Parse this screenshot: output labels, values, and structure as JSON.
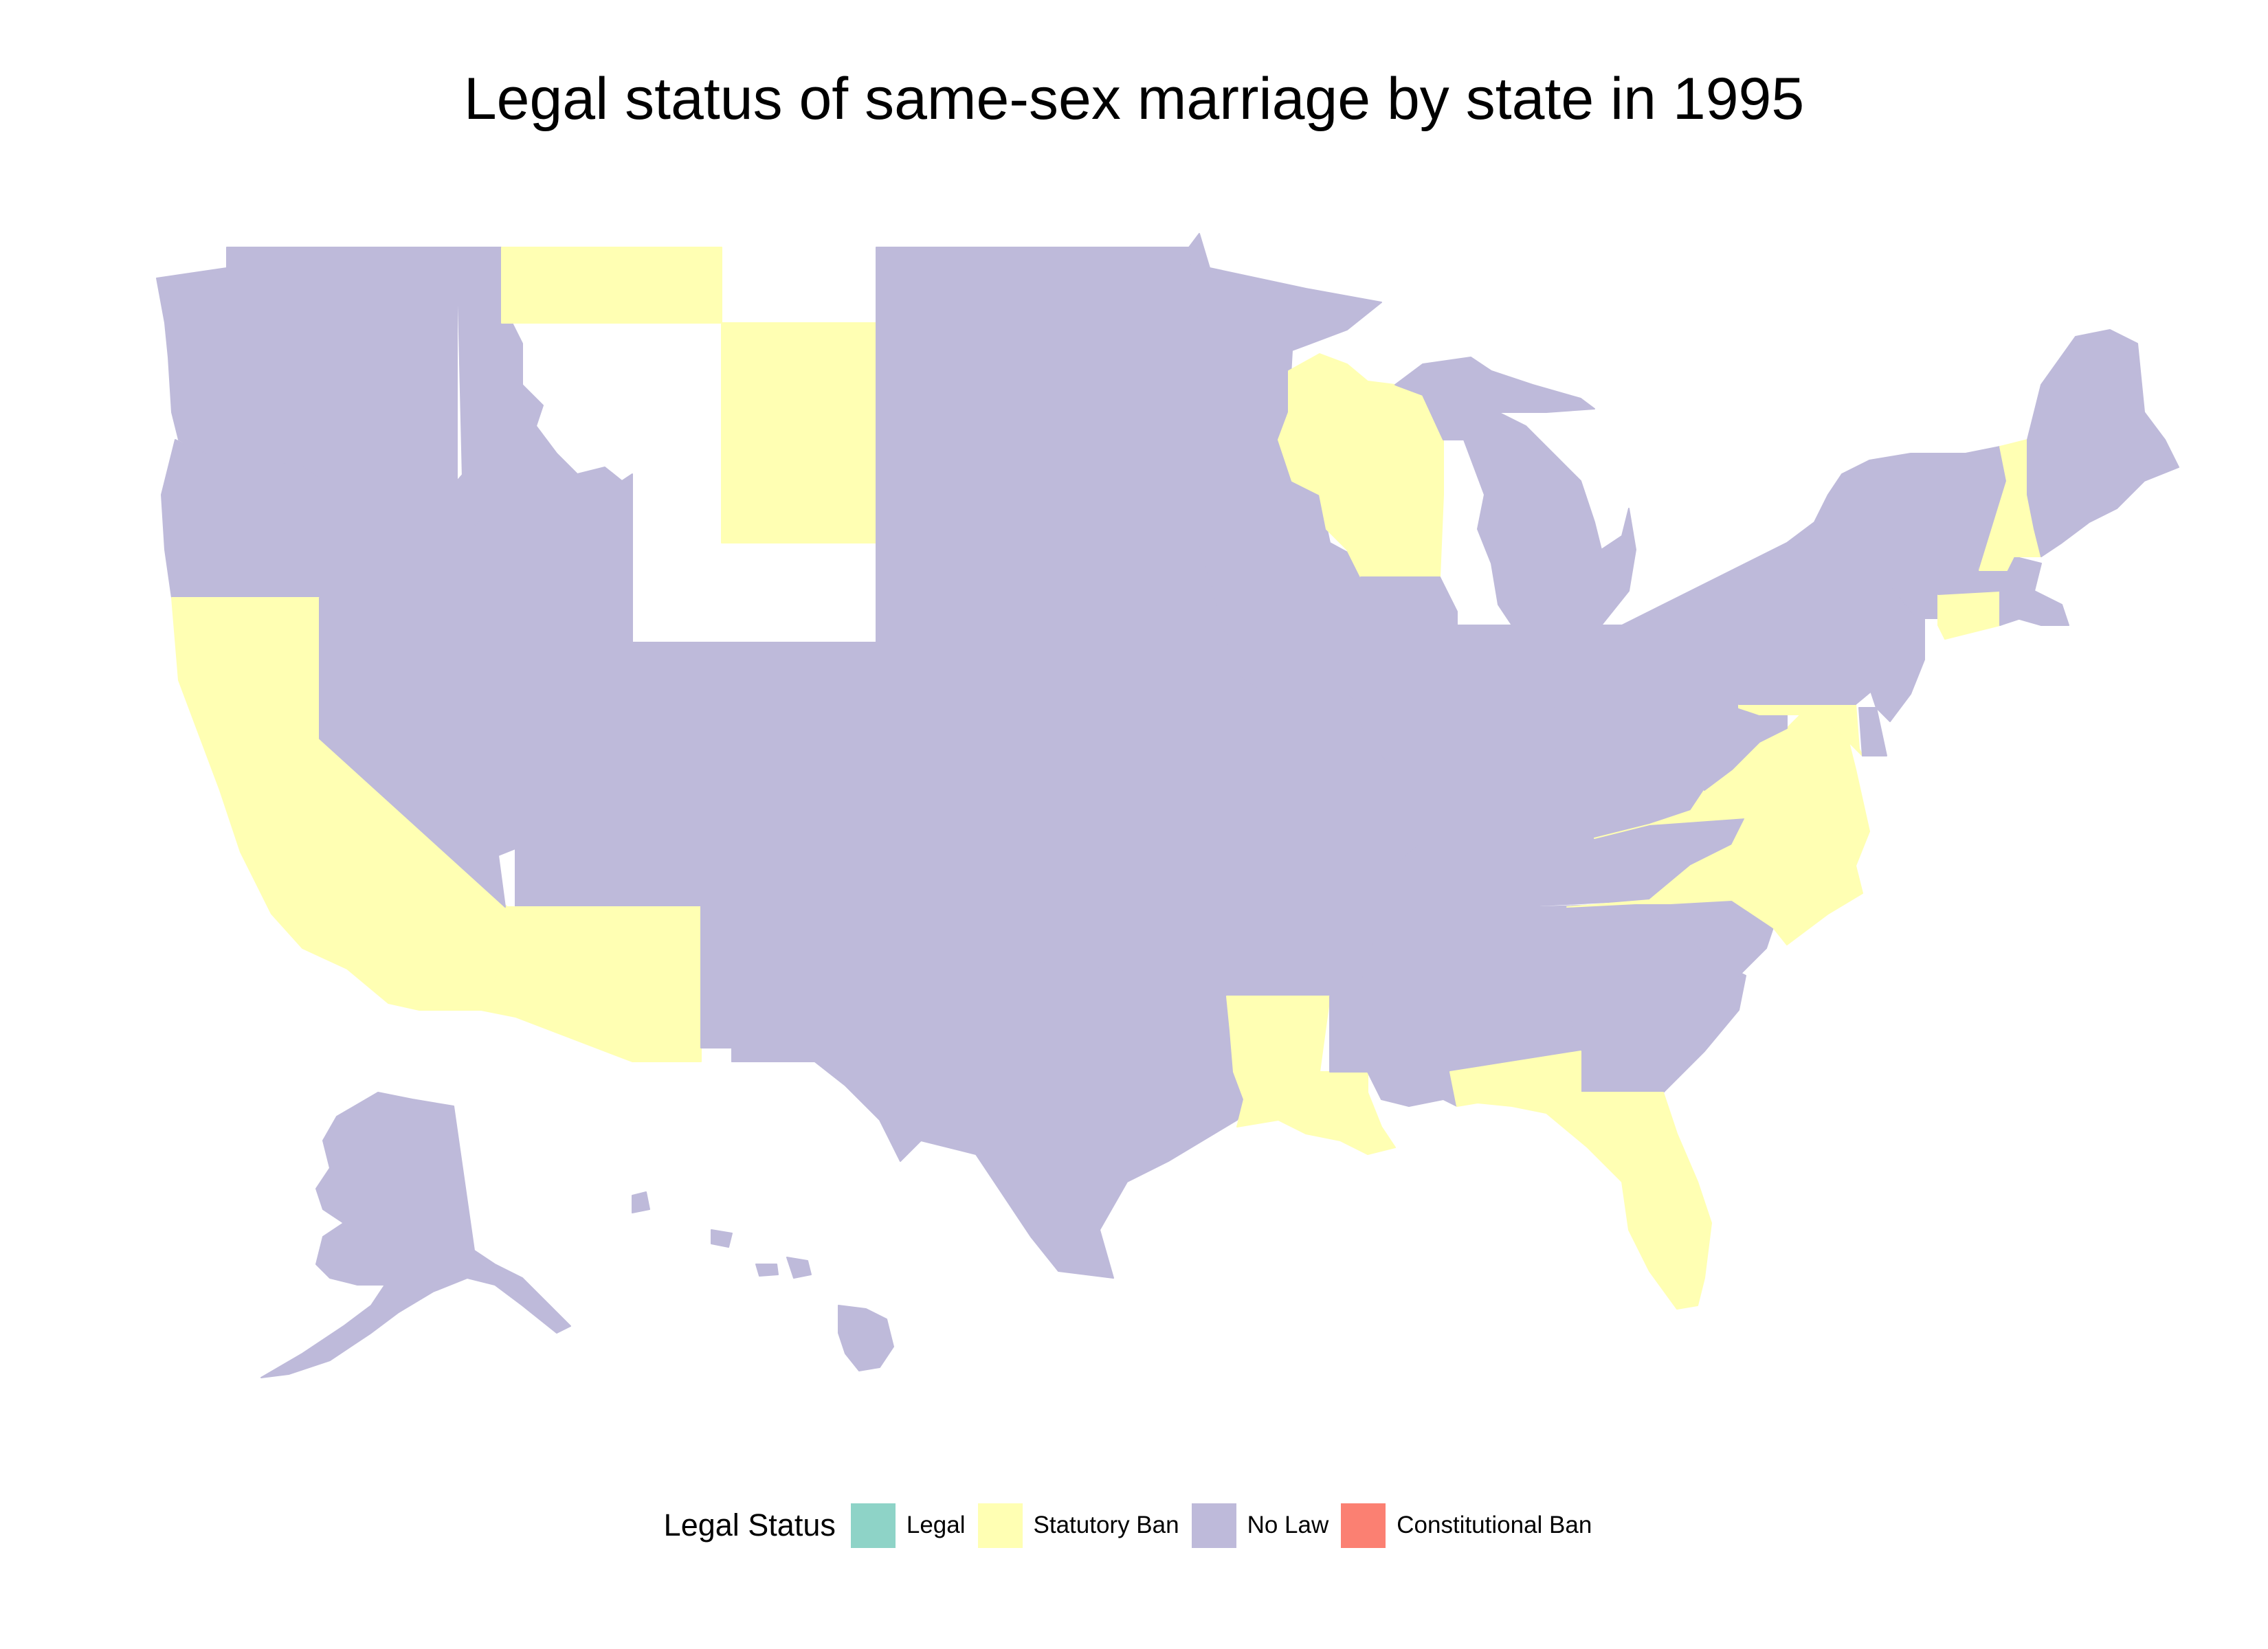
{
  "title": "Legal status of same-sex marriage by state in 1995",
  "legend": {
    "title": "Legal Status",
    "items": [
      {
        "key": "legal",
        "label": "Legal",
        "color": "#8ED3C7"
      },
      {
        "key": "statutory",
        "label": "Statutory Ban",
        "color": "#FFFFB3"
      },
      {
        "key": "nolaw",
        "label": "No Law",
        "color": "#BEBADA"
      },
      {
        "key": "constitutional",
        "label": "Constitutional Ban",
        "color": "#FB8072"
      }
    ]
  },
  "states": [
    {
      "name": "Washington",
      "status": "nolaw"
    },
    {
      "name": "Oregon",
      "status": "nolaw"
    },
    {
      "name": "California",
      "status": "statutory"
    },
    {
      "name": "Nevada",
      "status": "nolaw"
    },
    {
      "name": "Idaho",
      "status": "nolaw"
    },
    {
      "name": "Utah",
      "status": "nolaw"
    },
    {
      "name": "Arizona",
      "status": "statutory"
    },
    {
      "name": "Montana",
      "status": "statutory"
    },
    {
      "name": "Wyoming",
      "status": "statutory"
    },
    {
      "name": "Colorado",
      "status": "nolaw"
    },
    {
      "name": "New Mexico",
      "status": "nolaw"
    },
    {
      "name": "North Dakota",
      "status": "nolaw"
    },
    {
      "name": "South Dakota",
      "status": "nolaw"
    },
    {
      "name": "Nebraska",
      "status": "nolaw"
    },
    {
      "name": "Kansas",
      "status": "nolaw"
    },
    {
      "name": "Oklahoma",
      "status": "nolaw"
    },
    {
      "name": "Texas",
      "status": "nolaw"
    },
    {
      "name": "Minnesota",
      "status": "nolaw"
    },
    {
      "name": "Iowa",
      "status": "nolaw"
    },
    {
      "name": "Missouri",
      "status": "nolaw"
    },
    {
      "name": "Arkansas",
      "status": "nolaw"
    },
    {
      "name": "Louisiana",
      "status": "statutory"
    },
    {
      "name": "Wisconsin",
      "status": "statutory"
    },
    {
      "name": "Illinois",
      "status": "nolaw"
    },
    {
      "name": "Michigan",
      "status": "nolaw"
    },
    {
      "name": "Indiana",
      "status": "nolaw"
    },
    {
      "name": "Ohio",
      "status": "nolaw"
    },
    {
      "name": "Kentucky",
      "status": "nolaw"
    },
    {
      "name": "Tennessee",
      "status": "nolaw"
    },
    {
      "name": "Mississippi",
      "status": "nolaw"
    },
    {
      "name": "Alabama",
      "status": "nolaw"
    },
    {
      "name": "Georgia",
      "status": "nolaw"
    },
    {
      "name": "Florida",
      "status": "statutory"
    },
    {
      "name": "South Carolina",
      "status": "nolaw"
    },
    {
      "name": "North Carolina",
      "status": "statutory"
    },
    {
      "name": "Virginia",
      "status": "statutory"
    },
    {
      "name": "West Virginia",
      "status": "nolaw"
    },
    {
      "name": "Maryland",
      "status": "statutory"
    },
    {
      "name": "Delaware",
      "status": "nolaw"
    },
    {
      "name": "Pennsylvania",
      "status": "nolaw"
    },
    {
      "name": "New Jersey",
      "status": "nolaw"
    },
    {
      "name": "New York",
      "status": "nolaw"
    },
    {
      "name": "Connecticut",
      "status": "statutory"
    },
    {
      "name": "Rhode Island",
      "status": "nolaw"
    },
    {
      "name": "Massachusetts",
      "status": "nolaw"
    },
    {
      "name": "Vermont",
      "status": "nolaw"
    },
    {
      "name": "New Hampshire",
      "status": "statutory"
    },
    {
      "name": "Maine",
      "status": "nolaw"
    },
    {
      "name": "Alaska",
      "status": "nolaw"
    },
    {
      "name": "Hawaii",
      "status": "nolaw"
    }
  ]
}
